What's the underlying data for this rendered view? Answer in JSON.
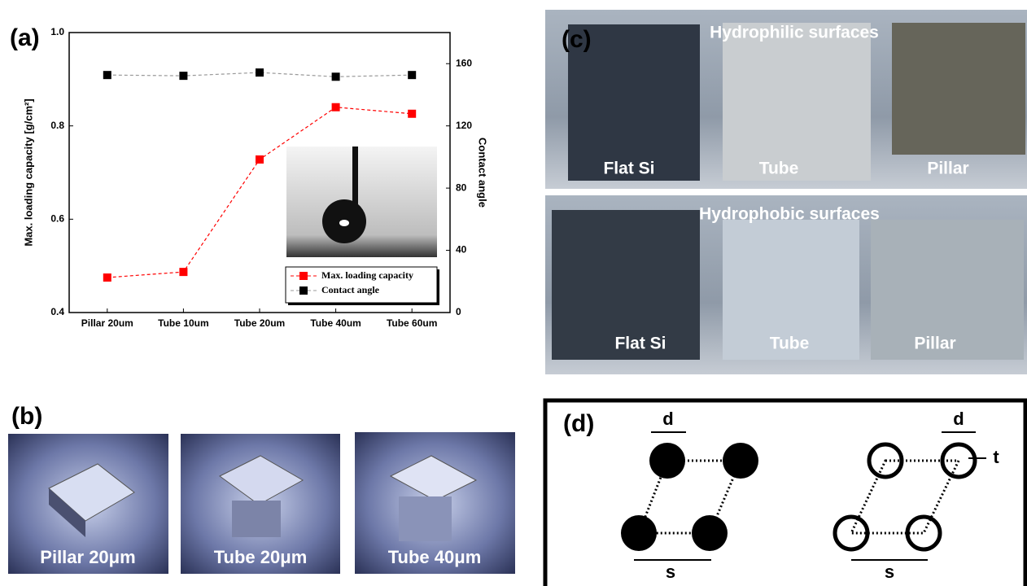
{
  "chart_data": {
    "type": "line",
    "panel_label": "(a)",
    "categories": [
      "Pillar 20um",
      "Tube 10um",
      "Tube 20um",
      "Tube 40um",
      "Tube 60um"
    ],
    "ylabel": "Max. loading capacity [g/cm²]",
    "y2label": "Contact angle",
    "ylim": [
      0.4,
      1.0
    ],
    "yticks": [
      0.4,
      0.6,
      0.8,
      {
        "value": 1.0,
        "label": "1.0"
      }
    ],
    "y2lim": [
      0,
      180
    ],
    "y2ticks": [
      0,
      40,
      80,
      120,
      160
    ],
    "legend": "lower right",
    "series": [
      {
        "name": "Max. loading capacity",
        "color": "#ff0000",
        "values": [
          0.475,
          0.487,
          0.728,
          0.84,
          0.826
        ]
      },
      {
        "name": "Contact angle",
        "color": "#000000",
        "values": [
          152.7,
          152.2,
          154.3,
          151.6,
          152.7
        ],
        "axis": "y2"
      }
    ]
  },
  "panel_b": {
    "label": "(b)",
    "photos": [
      "Pillar 20μm",
      "Tube 20μm",
      "Tube 40μm"
    ]
  },
  "panel_c": {
    "label": "(c)",
    "rows": [
      {
        "title": "Hydrophilic surfaces",
        "samples": [
          "Flat Si",
          "Tube",
          "Pillar"
        ]
      },
      {
        "title": "Hydrophobic surfaces",
        "samples": [
          "Flat Si",
          "Tube",
          "Pillar"
        ]
      }
    ]
  },
  "panel_d": {
    "label": "(d)",
    "solid_d": "d",
    "solid_s": "s",
    "ring_d": "d",
    "ring_t": "t",
    "ring_s": "s"
  }
}
